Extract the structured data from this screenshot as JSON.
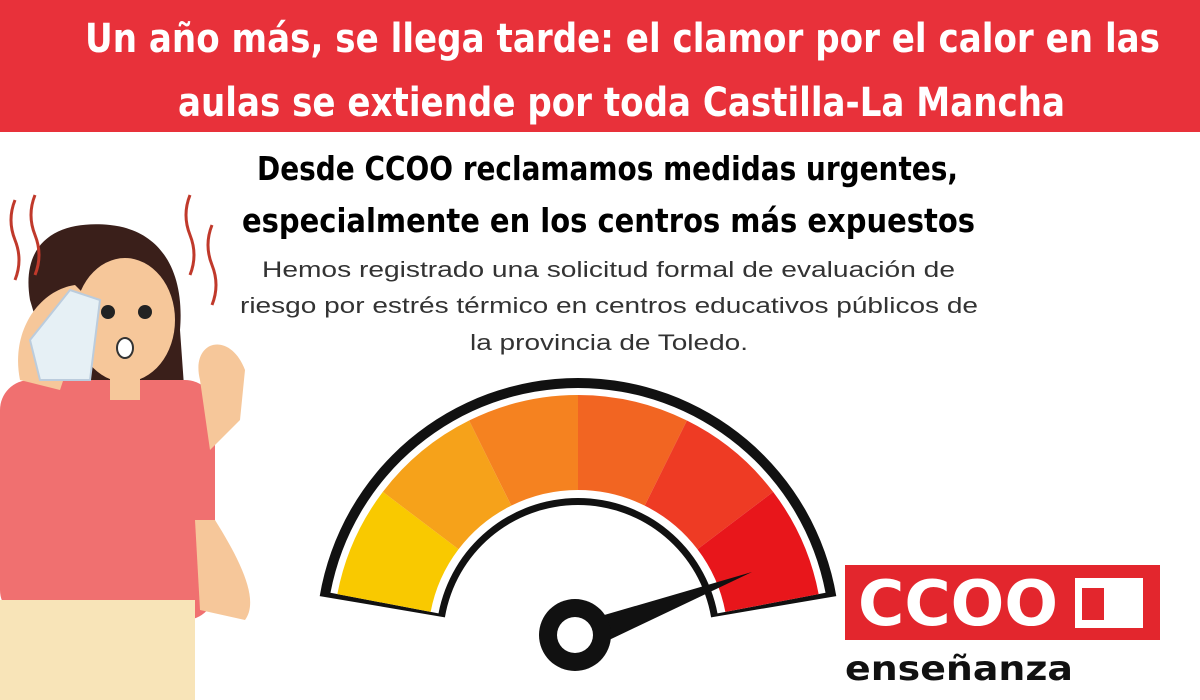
{
  "header": {
    "title_lines": [
      "Un año más, se llega tarde: el clamor por el calor en las",
      "aulas se extiende por toda Castilla-La Mancha"
    ]
  },
  "subtitle_lines": [
    "Desde CCOO reclamamos medidas urgentes,",
    "especialmente en los centros más expuestos"
  ],
  "body_lines": [
    "Hemos registrado una solicitud formal de evaluación de",
    "riesgo por estrés térmico en centros educativos públicos de",
    "la provincia de Toledo."
  ],
  "logo": {
    "text": "CCOO",
    "caption": "enseñanza"
  }
}
